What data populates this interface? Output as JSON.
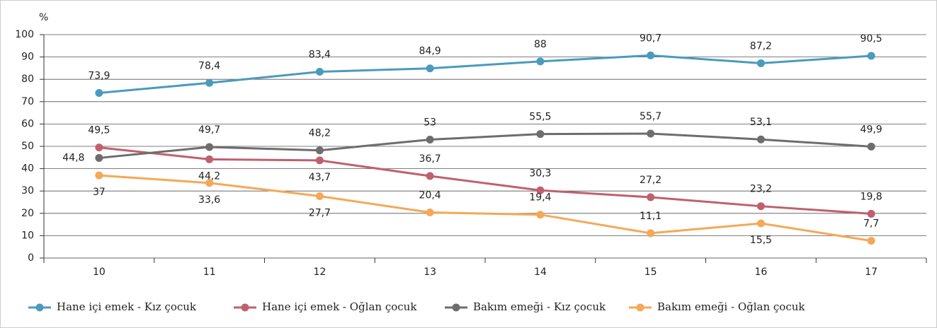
{
  "chart_data": {
    "type": "line",
    "ylabel": "%",
    "categories": [
      "10",
      "11",
      "12",
      "13",
      "14",
      "15",
      "16",
      "17"
    ],
    "series": [
      {
        "name": "Hane içi emek - Kız çocuk",
        "color": "#4a9bbd",
        "values": [
          73.9,
          78.4,
          83.4,
          84.9,
          88,
          90.7,
          87.2,
          90.5
        ],
        "value_labels": [
          "73,9",
          "78,4",
          "83,4",
          "84,9",
          "88",
          "90,7",
          "87,2",
          "90,5"
        ]
      },
      {
        "name": "Hane içi emek - Oğlan çocuk",
        "color": "#c0606e",
        "values": [
          49.5,
          44.2,
          43.7,
          36.7,
          30.3,
          27.2,
          23.2,
          19.8
        ],
        "value_labels": [
          "49,5",
          "44,2",
          "43,7",
          "36,7",
          "30,3",
          "27,2",
          "23,2",
          "19,8"
        ]
      },
      {
        "name": "Bakım emeği - Kız çocuk",
        "color": "#6d6d6d",
        "values": [
          44.8,
          49.7,
          48.2,
          53,
          55.5,
          55.7,
          53.1,
          49.9
        ],
        "value_labels": [
          "44,8",
          "49,7",
          "48,2",
          "53",
          "55,5",
          "55,7",
          "53,1",
          "49,9"
        ]
      },
      {
        "name": "Bakım emeği - Oğlan çocuk",
        "color": "#f5a857",
        "values": [
          37,
          33.6,
          27.7,
          20.4,
          19.4,
          11.1,
          15.5,
          7.7
        ],
        "value_labels": [
          "37",
          "33,6",
          "27,7",
          "20,4",
          "19,4",
          "11,1",
          "15,5",
          "7,7"
        ]
      }
    ],
    "ylim": [
      0,
      100
    ],
    "yticks": [
      0,
      10,
      20,
      30,
      40,
      50,
      60,
      70,
      80,
      90,
      100
    ],
    "grid": true
  }
}
